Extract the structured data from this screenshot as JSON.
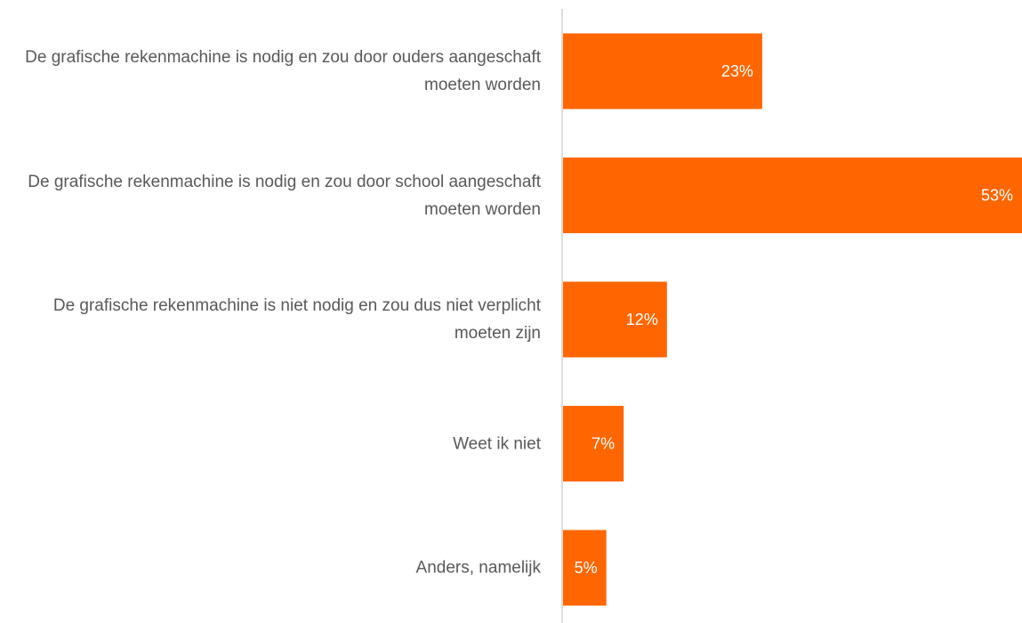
{
  "chart_data": {
    "type": "hbar",
    "categories": [
      "De grafische rekenmachine is nodig en zou door ouders aangeschaft moeten worden",
      "De grafische rekenmachine is nodig en zou door school aangeschaft moeten worden",
      "De grafische rekenmachine is niet nodig en zou dus niet verplicht moeten zijn",
      "Weet ik niet",
      "Anders, namelijk"
    ],
    "values": [
      23,
      53,
      12,
      7,
      5
    ],
    "value_labels": [
      "23%",
      "53%",
      "12%",
      "7%",
      "5%"
    ],
    "color": "#ff6600"
  }
}
